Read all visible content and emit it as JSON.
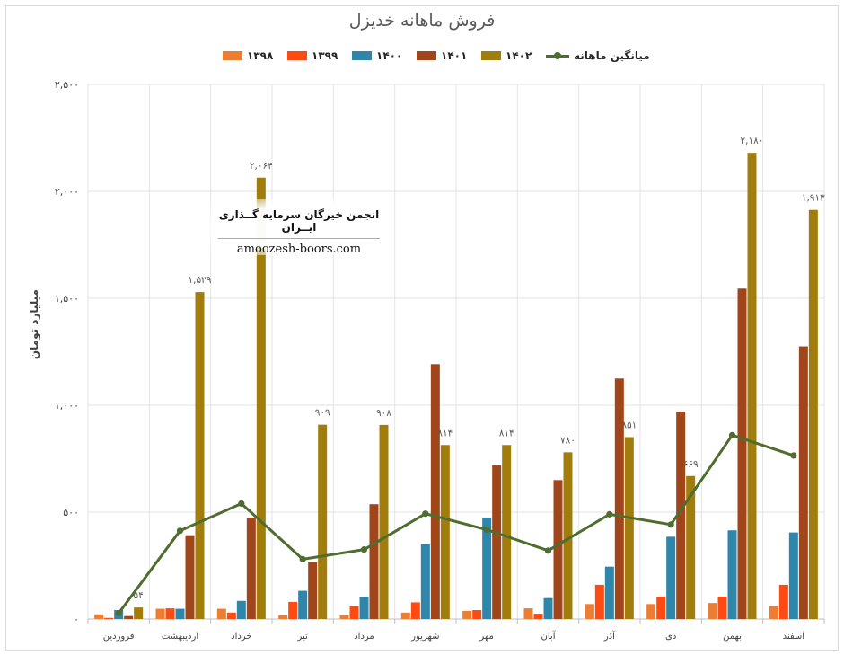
{
  "chart_data": {
    "type": "bar",
    "title": "فروش ماهانه خدیزل",
    "ylabel": "میلیارد تومان",
    "ylim": [
      0,
      2500
    ],
    "yticks": [
      0,
      500,
      1000,
      1500,
      2000,
      2500
    ],
    "ytick_labels": [
      "۰",
      "۵۰۰",
      "۱,۰۰۰",
      "۱,۵۰۰",
      "۲,۰۰۰",
      "۲,۵۰۰"
    ],
    "categories": [
      "فروردین",
      "اردیبهشت",
      "خرداد",
      "تیر",
      "مرداد",
      "شهریور",
      "مهر",
      "آبان",
      "آذر",
      "دی",
      "بهمن",
      "اسفند"
    ],
    "grid": true,
    "legend_position": "top",
    "series": [
      {
        "name": "۱۳۹۸",
        "color": "#ed7d31",
        "values": [
          22,
          48,
          48,
          18,
          18,
          30,
          38,
          50,
          70,
          70,
          75,
          60
        ]
      },
      {
        "name": "۱۳۹۹",
        "color": "#ff4b12",
        "values": [
          5,
          50,
          30,
          80,
          60,
          78,
          42,
          25,
          160,
          105,
          105,
          160
        ]
      },
      {
        "name": "۱۴۰۰",
        "color": "#2e86ab",
        "values": [
          42,
          48,
          85,
          132,
          104,
          350,
          475,
          98,
          245,
          385,
          415,
          405
        ]
      },
      {
        "name": "۱۴۰۱",
        "color": "#a0461a",
        "values": [
          14,
          392,
          475,
          266,
          537,
          1192,
          720,
          650,
          1125,
          970,
          1545,
          1275
        ]
      },
      {
        "name": "۱۴۰۲",
        "color": "#a07d0c",
        "values": [
          54,
          1529,
          2064,
          909,
          908,
          814,
          814,
          780,
          851,
          669,
          2180,
          1913
        ],
        "data_labels": [
          "۵۴",
          "۱,۵۲۹",
          "۲,۰۶۴",
          "۹۰۹",
          "۹۰۸",
          "۸۱۴",
          "۸۱۴",
          "۷۸۰",
          "۸۵۱",
          "۶۶۹",
          "۲,۱۸۰",
          "۱,۹۱۳"
        ]
      },
      {
        "name": "میانگین ماهانه",
        "type": "line",
        "color": "#4e6d2f",
        "values": [
          27,
          413,
          540,
          280,
          325,
          493,
          418,
          320,
          490,
          442,
          860,
          765
        ]
      }
    ]
  },
  "watermark": {
    "line1": "انجمن خیرگان سرمایه گــذاری ایــران",
    "line2": "amoozesh-boors.com"
  }
}
